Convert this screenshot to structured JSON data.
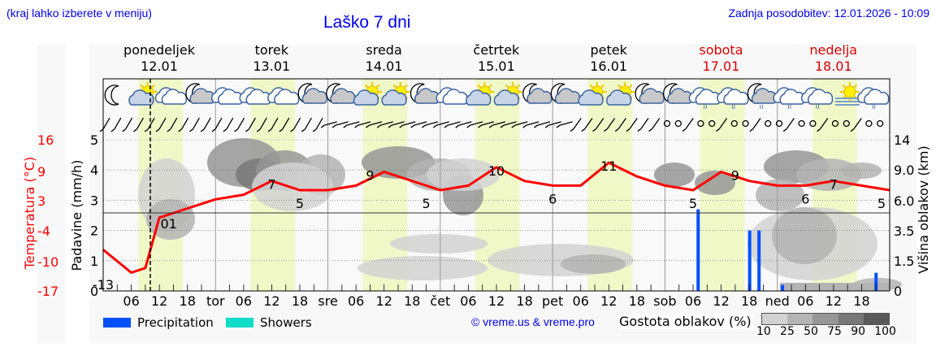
{
  "header": {
    "hint": "(kraj lahko izberete v meniju)",
    "title": "Laško 7 dni",
    "updated": "Zadnja posodobitev: 12.01.2026 - 10:09"
  },
  "days": [
    {
      "name": "ponedeljek",
      "date": "12.01",
      "weekend": false,
      "abbr": ""
    },
    {
      "name": "torek",
      "date": "13.01",
      "weekend": false,
      "abbr": "tor"
    },
    {
      "name": "sreda",
      "date": "14.01",
      "weekend": false,
      "abbr": "sre"
    },
    {
      "name": "četrtek",
      "date": "15.01",
      "weekend": false,
      "abbr": "čet"
    },
    {
      "name": "petek",
      "date": "16.01",
      "weekend": false,
      "abbr": "pet"
    },
    {
      "name": "sobota",
      "date": "17.01",
      "weekend": true,
      "abbr": "sob"
    },
    {
      "name": "nedelja",
      "date": "18.01",
      "weekend": true,
      "abbr": "ned"
    }
  ],
  "axes": {
    "temperature": {
      "label": "Temperatura (°C)",
      "ticks": [
        "16",
        "9",
        "3",
        "-4",
        "-10",
        "-17"
      ],
      "color": "#ff0000"
    },
    "precipitation": {
      "label": "Padavine (mm/h)",
      "ticks": [
        "5",
        "4",
        "3",
        "2",
        "1",
        "0"
      ]
    },
    "cloud_height": {
      "label": "Višina oblakov (km)",
      "ticks": [
        "14",
        "9.0",
        "6.0",
        "3.5",
        "1.5",
        "0"
      ]
    },
    "hour_ticks": [
      "06",
      "12",
      "18"
    ]
  },
  "legend": {
    "precipitation": {
      "label": "Precipitation",
      "color": "#0050ff"
    },
    "showers": {
      "label": "Showers",
      "color": "#10dcc8"
    },
    "copyright": "© vreme.us & vreme.pro",
    "density_label": "Gostota oblakov (%)",
    "density_scale": [
      "10",
      "25",
      "50",
      "75",
      "90",
      "100"
    ],
    "density_colors": [
      "#d2d2d2",
      "#b4b4b4",
      "#969696",
      "#787878",
      "#5a5a5a"
    ]
  },
  "icons": [
    "moon",
    "sun-cloud",
    "cloud",
    "moon-cloud",
    "cloud",
    "cloud",
    "cloud",
    "moon-cloud",
    "moon-cloud",
    "sun-cloud",
    "sun-cloud",
    "moon-cloud",
    "cloud",
    "sun-cloud",
    "sun-cloud",
    "moon-cloud",
    "moon-cloud",
    "sun-cloud",
    "sun-cloud",
    "moon-cloud",
    "moon-cloud",
    "cloud-rain",
    "cloud-rain",
    "moon-cloud-rain",
    "cloud-rain",
    "cloud-rain",
    "sun-fog",
    "cloud-rain"
  ],
  "chart_data": {
    "type": "line",
    "title": "Laško 7 dni",
    "xlabel": "",
    "ylabel": "Temperatura (°C)",
    "x": [
      "12.01 00",
      "12.01 06",
      "12.01 09",
      "12.01 12",
      "12.01 18",
      "13.01 00",
      "13.01 06",
      "13.01 12",
      "13.01 18",
      "14.01 00",
      "14.01 06",
      "14.01 12",
      "14.01 18",
      "15.01 00",
      "15.01 06",
      "15.01 12",
      "15.01 18",
      "16.01 00",
      "16.01 06",
      "16.01 12",
      "16.01 18",
      "17.01 00",
      "17.01 06",
      "17.01 12",
      "17.01 18",
      "18.01 00",
      "18.01 06",
      "18.01 12",
      "18.01 18",
      "19.01 00"
    ],
    "series": [
      {
        "name": "Temperatura",
        "color": "#ff0000",
        "values": [
          -8,
          -13,
          -12,
          -1,
          1,
          3,
          4,
          7,
          5,
          5,
          6,
          9,
          7,
          5,
          6,
          10,
          7,
          6,
          6,
          11,
          8,
          6,
          5,
          9,
          7,
          6,
          6,
          7,
          6,
          5
        ]
      },
      {
        "name": "Precipitation (mm/h)",
        "color": "#0050ff",
        "points": [
          {
            "x": "17.01 07",
            "y": 2.7
          },
          {
            "x": "17.01 18",
            "y": 2.0
          },
          {
            "x": "17.01 20",
            "y": 2.0
          },
          {
            "x": "18.01 01",
            "y": 0.2
          },
          {
            "x": "18.01 21",
            "y": 0.6
          }
        ]
      }
    ],
    "temperature_labels": [
      {
        "x": "12.01 00",
        "value": "-13"
      },
      {
        "x": "12.01 14",
        "value": "01"
      },
      {
        "x": "13.01 12",
        "value": "7"
      },
      {
        "x": "13.01 18",
        "value": "5"
      },
      {
        "x": "14.01 09",
        "value": "9"
      },
      {
        "x": "14.01 21",
        "value": "5"
      },
      {
        "x": "15.01 12",
        "value": "10"
      },
      {
        "x": "16.01 00",
        "value": "6"
      },
      {
        "x": "16.01 12",
        "value": "11"
      },
      {
        "x": "17.01 06",
        "value": "5"
      },
      {
        "x": "17.01 15",
        "value": "9"
      },
      {
        "x": "18.01 06",
        "value": "6"
      },
      {
        "x": "18.01 12",
        "value": "7"
      },
      {
        "x": "19.01 00",
        "value": "5"
      }
    ],
    "ylim": [
      -17,
      16
    ],
    "precip_ylim": [
      0,
      5
    ],
    "cloud_height_ticks": [
      0,
      1.5,
      3.5,
      6.0,
      9.0,
      14
    ],
    "grid": true,
    "legend_position": "bottom"
  }
}
